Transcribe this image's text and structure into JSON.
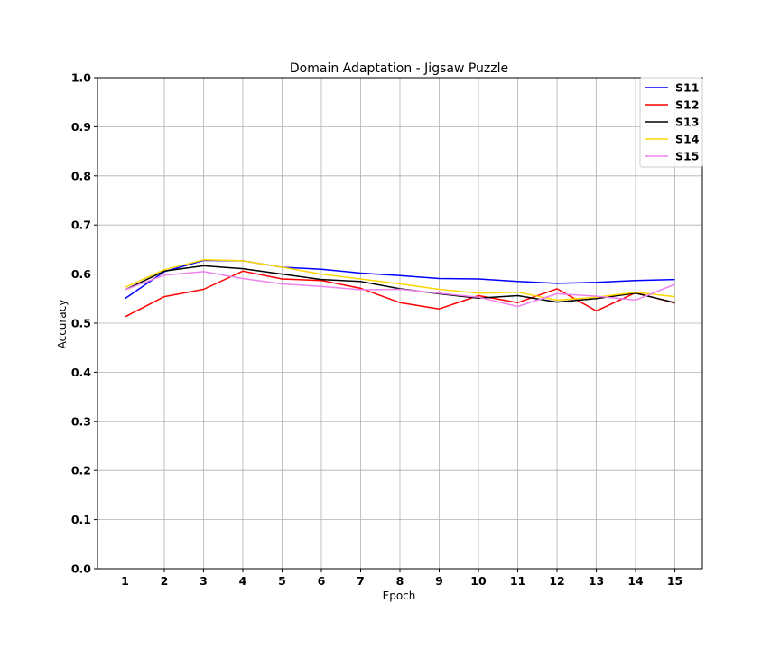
{
  "chart_data": {
    "type": "line",
    "title": "Domain Adaptation - Jigsaw Puzzle",
    "xlabel": "Epoch",
    "ylabel": "Accuracy",
    "x": [
      1,
      2,
      3,
      4,
      5,
      6,
      7,
      8,
      9,
      10,
      11,
      12,
      13,
      14,
      15
    ],
    "xlim": [
      0.3,
      15.7
    ],
    "ylim": [
      0.0,
      1.0
    ],
    "yticks": [
      0.0,
      0.1,
      0.2,
      0.3,
      0.4,
      0.5,
      0.6,
      0.7,
      0.8,
      0.9,
      1.0
    ],
    "ytick_labels": [
      "0.0",
      "0.1",
      "0.2",
      "0.3",
      "0.4",
      "0.5",
      "0.6",
      "0.7",
      "0.8",
      "0.9",
      "1.0"
    ],
    "xtick_labels": [
      "1",
      "2",
      "3",
      "4",
      "5",
      "6",
      "7",
      "8",
      "9",
      "10",
      "11",
      "12",
      "13",
      "14",
      "15"
    ],
    "grid": true,
    "legend_position": "top-right",
    "series": [
      {
        "name": "S11",
        "color": "#0000ff",
        "values": [
          0.55,
          0.605,
          0.628,
          0.627,
          0.614,
          0.61,
          0.602,
          0.597,
          0.591,
          0.59,
          0.585,
          0.581,
          0.583,
          0.587,
          0.589
        ]
      },
      {
        "name": "S12",
        "color": "#ff0000",
        "values": [
          0.513,
          0.554,
          0.569,
          0.606,
          0.59,
          0.587,
          0.571,
          0.542,
          0.529,
          0.556,
          0.542,
          0.57,
          0.525,
          0.562,
          0.541
        ]
      },
      {
        "name": "S13",
        "color": "#000000",
        "values": [
          0.568,
          0.606,
          0.617,
          0.611,
          0.6,
          0.589,
          0.585,
          0.57,
          0.56,
          0.551,
          0.556,
          0.543,
          0.55,
          0.561,
          0.542
        ]
      },
      {
        "name": "S14",
        "color": "#ffd700",
        "values": [
          0.573,
          0.609,
          0.629,
          0.627,
          0.614,
          0.6,
          0.59,
          0.58,
          0.569,
          0.561,
          0.563,
          0.547,
          0.553,
          0.563,
          0.554
        ]
      },
      {
        "name": "S15",
        "color": "#ee82ee",
        "values": [
          0.568,
          0.598,
          0.605,
          0.591,
          0.58,
          0.575,
          0.568,
          0.569,
          0.561,
          0.553,
          0.534,
          0.56,
          0.555,
          0.547,
          0.579
        ]
      }
    ]
  }
}
